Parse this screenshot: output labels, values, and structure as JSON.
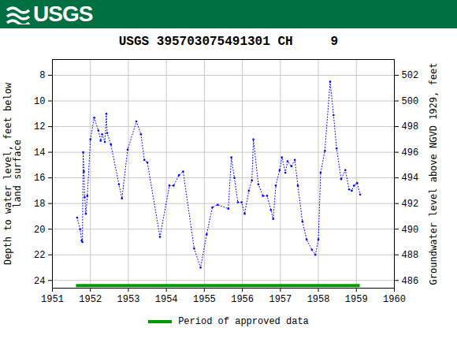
{
  "chart_data": {
    "type": "line",
    "logo_text": "USGS",
    "title": "USGS 395703075491301 CH     9",
    "y_label": "Depth to water level, feet below land surface",
    "y2_label": "Groundwater level above NGVD 1929, feet",
    "color": "#0000ff",
    "marker": "dot",
    "line_style": "dotted",
    "grid": true,
    "x": [
      1951.65,
      1951.73,
      1951.77,
      1951.79,
      1951.81,
      1951.83,
      1951.85,
      1951.88,
      1951.92,
      1952.0,
      1952.1,
      1952.21,
      1952.27,
      1952.31,
      1952.38,
      1952.42,
      1952.44,
      1952.54,
      1952.75,
      1952.83,
      1952.98,
      1953.21,
      1953.33,
      1953.42,
      1953.5,
      1953.83,
      1954.08,
      1954.19,
      1954.33,
      1954.44,
      1954.73,
      1954.9,
      1955.06,
      1955.21,
      1955.35,
      1955.63,
      1955.71,
      1955.79,
      1955.88,
      1955.98,
      1956.06,
      1956.17,
      1956.25,
      1956.29,
      1956.42,
      1956.54,
      1956.65,
      1956.75,
      1956.81,
      1956.88,
      1956.98,
      1957.04,
      1957.13,
      1957.19,
      1957.29,
      1957.38,
      1957.46,
      1957.58,
      1957.69,
      1957.83,
      1957.92,
      1958.0,
      1958.06,
      1958.17,
      1958.31,
      1958.4,
      1958.48,
      1958.6,
      1958.71,
      1958.81,
      1958.88,
      1958.94,
      1959.02,
      1959.1
    ],
    "values": [
      19.1,
      20.0,
      20.9,
      21.0,
      14.0,
      15.5,
      17.5,
      18.8,
      17.4,
      13.0,
      11.3,
      12.3,
      13.1,
      12.6,
      13.2,
      11.0,
      12.5,
      13.4,
      16.5,
      17.6,
      13.8,
      11.6,
      12.6,
      14.6,
      14.8,
      20.6,
      16.6,
      16.6,
      15.8,
      15.5,
      21.5,
      23.0,
      20.4,
      18.3,
      18.1,
      18.4,
      14.4,
      16.0,
      17.9,
      17.9,
      18.8,
      17.0,
      16.2,
      13.0,
      16.5,
      17.4,
      17.4,
      18.5,
      19.2,
      16.6,
      15.4,
      14.4,
      15.6,
      14.7,
      15.1,
      14.6,
      16.6,
      19.4,
      20.8,
      21.6,
      22.0,
      20.8,
      15.6,
      13.9,
      8.5,
      11.1,
      13.7,
      16.1,
      15.4,
      16.9,
      17.0,
      16.6,
      16.4,
      17.3
    ],
    "xlim": [
      1951,
      1960
    ],
    "xticks": [
      1951,
      1952,
      1953,
      1954,
      1955,
      1956,
      1957,
      1958,
      1959,
      1960
    ],
    "ylim": [
      24.6,
      6.77
    ],
    "yticks": [
      8,
      10,
      12,
      14,
      16,
      18,
      20,
      22,
      24
    ],
    "y2lim": [
      485.4,
      503.23
    ],
    "y2ticks": [
      486,
      488,
      490,
      492,
      494,
      496,
      498,
      500,
      502
    ],
    "approved_period": {
      "label": "Period of approved data",
      "color": "#009900",
      "x_start": 1951.63,
      "x_end": 1959.1,
      "y": 24.4
    }
  }
}
